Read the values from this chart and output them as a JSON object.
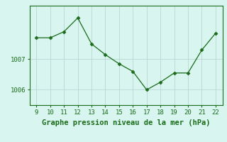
{
  "x": [
    9,
    10,
    11,
    12,
    13,
    14,
    15,
    16,
    17,
    18,
    19,
    20,
    21,
    22
  ],
  "y": [
    1007.7,
    1007.7,
    1007.9,
    1008.35,
    1007.5,
    1007.15,
    1006.85,
    1006.6,
    1006.0,
    1006.25,
    1006.55,
    1006.55,
    1007.3,
    1007.85
  ],
  "line_color": "#1a6b1a",
  "marker": "D",
  "marker_size": 2.5,
  "background_color": "#d8f5f0",
  "grid_color": "#b8d8d4",
  "xlabel": "Graphe pression niveau de la mer (hPa)",
  "xlabel_color": "#1a6b1a",
  "ylabel_ticks": [
    1006,
    1007
  ],
  "xlim": [
    8.5,
    22.5
  ],
  "ylim": [
    1005.5,
    1008.75
  ],
  "xticks": [
    9,
    10,
    11,
    12,
    13,
    14,
    15,
    16,
    17,
    18,
    19,
    20,
    21,
    22
  ],
  "tick_color": "#1a6b1a",
  "spine_color": "#1a6b1a",
  "tick_fontsize": 6.5,
  "xlabel_fontsize": 7.5
}
